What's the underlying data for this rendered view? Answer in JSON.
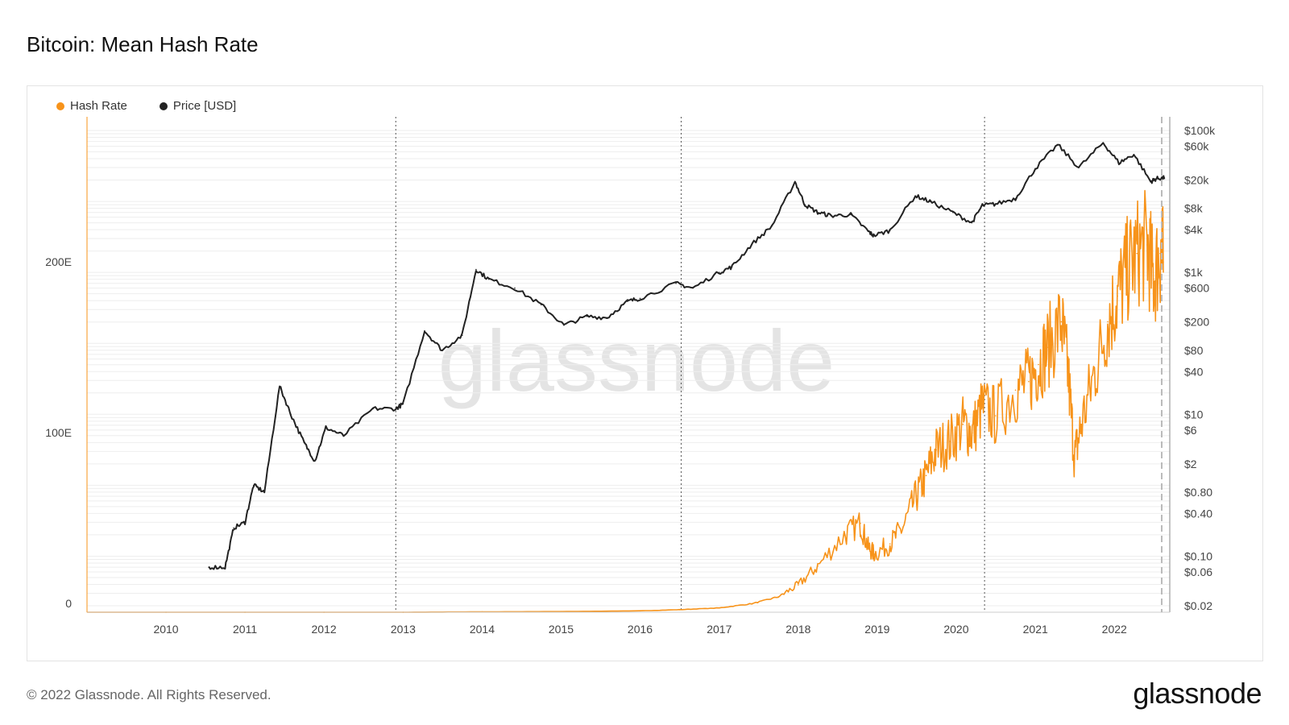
{
  "title": "Bitcoin: Mean Hash Rate",
  "footer": {
    "copyright": "© 2022 Glassnode. All Rights Reserved.",
    "brand": "glassnode"
  },
  "watermark": "glassnode",
  "colors": {
    "hash_rate": "#f7931a",
    "price": "#222222",
    "grid": "#eeeeee",
    "dotted": "#555555"
  },
  "chart_data": {
    "type": "line",
    "title": "Bitcoin: Mean Hash Rate",
    "legend_placement": "top-left",
    "grid": true,
    "x_ticks": [
      "2010",
      "2011",
      "2012",
      "2013",
      "2014",
      "2015",
      "2016",
      "2017",
      "2018",
      "2019",
      "2020",
      "2021",
      "2022"
    ],
    "y_left": {
      "ticks": [
        "0",
        "100E",
        "200E"
      ],
      "range": [
        0,
        290
      ],
      "unit": "EH/s"
    },
    "y_right": {
      "scale": "log",
      "ticks": [
        "$100k",
        "$60k",
        "$20k",
        "$8k",
        "$4k",
        "$1k",
        "$600",
        "$200",
        "$80",
        "$40",
        "$10",
        "$6",
        "$2",
        "$0.80",
        "$0.40",
        "$0.10",
        "$0.06",
        "$0.02"
      ],
      "tick_values": [
        100000,
        60000,
        20000,
        8000,
        4000,
        1000,
        600,
        200,
        80,
        40,
        10,
        6,
        2,
        0.8,
        0.4,
        0.1,
        0.06,
        0.02
      ],
      "range": [
        0.02,
        100000
      ]
    },
    "halvings": [
      "2012-11-28",
      "2016-07-09",
      "2020-05-11"
    ],
    "series": [
      {
        "name": "Hash Rate",
        "axis": "left",
        "x": [
          "2009-01-03",
          "2010-01-01",
          "2011-01-01",
          "2012-01-01",
          "2013-01-01",
          "2014-01-01",
          "2015-01-01",
          "2016-01-01",
          "2016-07-01",
          "2017-01-01",
          "2017-06-01",
          "2017-10-01",
          "2018-01-01",
          "2018-04-01",
          "2018-08-01",
          "2018-10-15",
          "2018-11-20",
          "2018-12-20",
          "2019-03-01",
          "2019-05-01",
          "2019-07-01",
          "2019-08-15",
          "2019-10-01",
          "2019-12-01",
          "2020-02-01",
          "2020-03-15",
          "2020-05-01",
          "2020-07-01",
          "2020-10-01",
          "2020-12-01",
          "2021-01-15",
          "2021-03-01",
          "2021-05-01",
          "2021-06-01",
          "2021-07-01",
          "2021-08-01",
          "2021-10-01",
          "2021-12-01",
          "2022-01-15",
          "2022-03-01",
          "2022-04-15",
          "2022-06-01",
          "2022-07-01",
          "2022-08-01",
          "2022-08-15"
        ],
        "values": [
          0,
          0,
          0,
          0,
          0,
          0.2,
          0.4,
          0.8,
          1.5,
          2.5,
          5,
          9,
          16,
          27,
          45,
          52,
          38,
          34,
          40,
          50,
          68,
          80,
          95,
          100,
          110,
          105,
          120,
          115,
          130,
          135,
          145,
          155,
          170,
          140,
          90,
          110,
          140,
          170,
          185,
          200,
          210,
          215,
          195,
          210,
          205
        ]
      },
      {
        "name": "Price [USD]",
        "axis": "right",
        "x": [
          "2010-07-18",
          "2010-10-01",
          "2010-11-10",
          "2011-01-01",
          "2011-02-10",
          "2011-04-01",
          "2011-06-10",
          "2011-08-01",
          "2011-10-01",
          "2011-11-20",
          "2012-01-10",
          "2012-04-01",
          "2012-08-15",
          "2012-11-28",
          "2013-01-01",
          "2013-04-10",
          "2013-07-01",
          "2013-10-01",
          "2013-12-04",
          "2014-02-01",
          "2014-06-01",
          "2014-10-01",
          "2015-01-14",
          "2015-05-01",
          "2015-08-01",
          "2015-11-04",
          "2016-01-01",
          "2016-06-15",
          "2016-09-01",
          "2017-01-01",
          "2017-03-01",
          "2017-06-01",
          "2017-09-01",
          "2017-12-17",
          "2018-02-01",
          "2018-04-01",
          "2018-06-01",
          "2018-09-01",
          "2018-11-20",
          "2018-12-15",
          "2019-03-01",
          "2019-06-26",
          "2019-09-01",
          "2019-12-17",
          "2020-03-13",
          "2020-05-01",
          "2020-07-01",
          "2020-10-01",
          "2020-12-31",
          "2021-04-14",
          "2021-07-20",
          "2021-11-10",
          "2022-01-22",
          "2022-04-01",
          "2022-06-18",
          "2022-07-15",
          "2022-08-20"
        ],
        "values": [
          0.07,
          0.07,
          0.25,
          0.3,
          1.0,
          0.8,
          25,
          10,
          4,
          2.2,
          6.5,
          5,
          12,
          12,
          14,
          150,
          80,
          130,
          1100,
          800,
          600,
          350,
          180,
          240,
          230,
          390,
          430,
          700,
          600,
          1000,
          1200,
          2500,
          4500,
          19000,
          9000,
          7000,
          6300,
          6500,
          3800,
          3300,
          3900,
          12000,
          10000,
          7000,
          5000,
          8800,
          9200,
          11000,
          29000,
          63000,
          30000,
          67000,
          35000,
          46000,
          19000,
          21000,
          21500
        ]
      }
    ]
  }
}
